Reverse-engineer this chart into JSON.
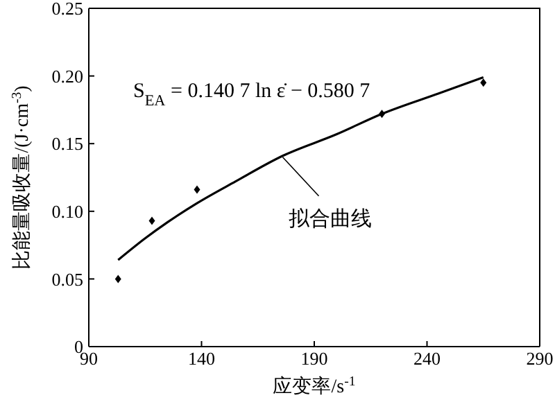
{
  "chart_data": {
    "type": "scatter",
    "xlabel": "应变率/s$^{-1}$",
    "ylabel": "比能量吸收量/(J·cm$^{-3}$)",
    "marker": "diamond",
    "series": [
      {
        "color": "#000000",
        "x": [
          103,
          118,
          138,
          220,
          265
        ],
        "values": [
          0.05,
          0.093,
          0.116,
          0.172,
          0.195
        ]
      },
      {
        "type": "line",
        "color": "#000000",
        "x": [
          103,
          115,
          125,
          138,
          155,
          176,
          200,
          220,
          245,
          265
        ],
        "values": [
          0.064,
          0.08,
          0.092,
          0.106,
          0.122,
          0.141,
          0.157,
          0.172,
          0.187,
          0.199
        ],
        "marker": "none"
      }
    ],
    "xlim": [
      90,
      290
    ],
    "xticks": [
      90,
      140,
      190,
      240,
      290
    ],
    "ylim": [
      0,
      0.25
    ],
    "yticks": [
      0,
      0.05,
      {
        "value": 0.1,
        "label": "0.10"
      },
      0.15,
      {
        "value": 0.2,
        "label": "0.20"
      },
      0.25
    ],
    "grid": false,
    "legend": false,
    "annotations": [
      "S$_{EA}$ = 0.140 7 ln ε̇ − 0.580 7",
      {
        "text": "拟合曲线",
        "x": 176,
        "y": 0.141
      }
    ]
  }
}
